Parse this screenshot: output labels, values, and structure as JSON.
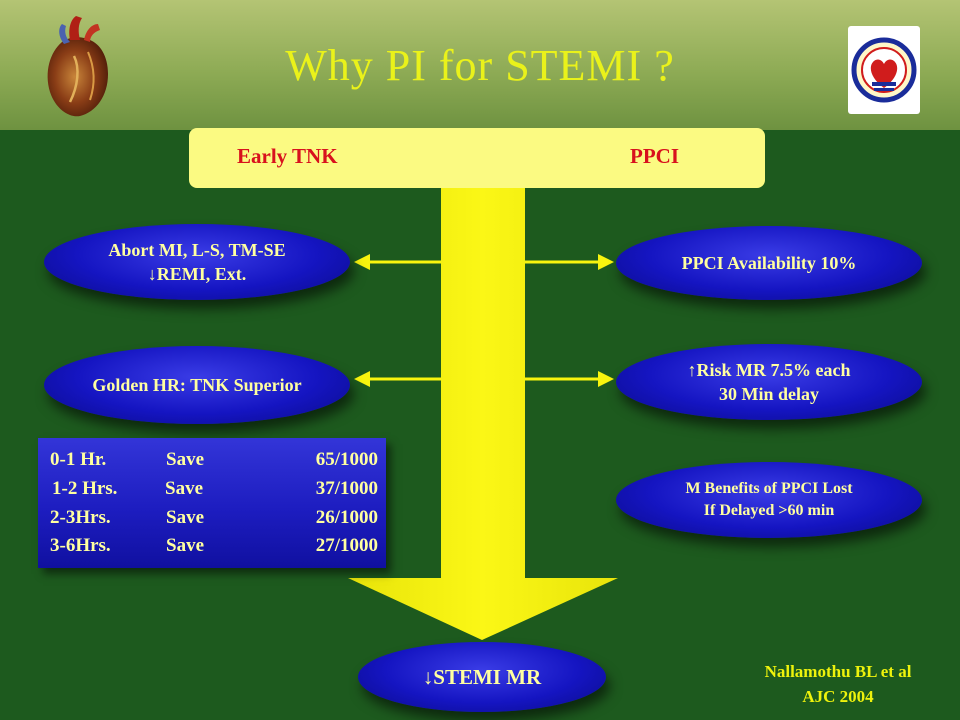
{
  "slide": {
    "title": "Why PI for STEMI ?",
    "columns": {
      "left": "Early TNK",
      "right": "PPCI"
    },
    "left_items": [
      {
        "lines": [
          "Abort MI, L-S, TM-SE",
          "↓REMI, Ext."
        ]
      },
      {
        "lines": [
          "Golden  HR: TNK Superior"
        ]
      }
    ],
    "right_items": [
      {
        "lines": [
          "PPCI Availability 10%"
        ]
      },
      {
        "lines": [
          "↑Risk MR 7.5% each",
          "30 Min delay"
        ]
      },
      {
        "lines": [
          "M Benefits of PPCI Lost",
          "If  Delayed >60 min"
        ]
      }
    ],
    "save_table": [
      {
        "time": "0-1 Hr.",
        "action": "Save",
        "value": "65/1000"
      },
      {
        "time": "1-2 Hrs.",
        "action": "Save",
        "value": "37/1000"
      },
      {
        "time": "2-3Hrs.",
        "action": "Save",
        "value": "26/1000"
      },
      {
        "time": "3-6Hrs.",
        "action": "Save",
        "value": "27/1000"
      }
    ],
    "result": "↓STEMI  MR",
    "citation": {
      "line1": "Nallamothu BL et al",
      "line2": "AJC 2004"
    },
    "colors": {
      "background": "#1d5a1e",
      "title": "#eaf21a",
      "header_label": "#d8111d",
      "arrow": "#f8f40e",
      "ellipse_fill": "#1515c2",
      "ellipse_text": "#ffffa0"
    },
    "icons": {
      "top_left": "heart-icon",
      "top_right": "cardiological-society-logo-icon"
    }
  }
}
